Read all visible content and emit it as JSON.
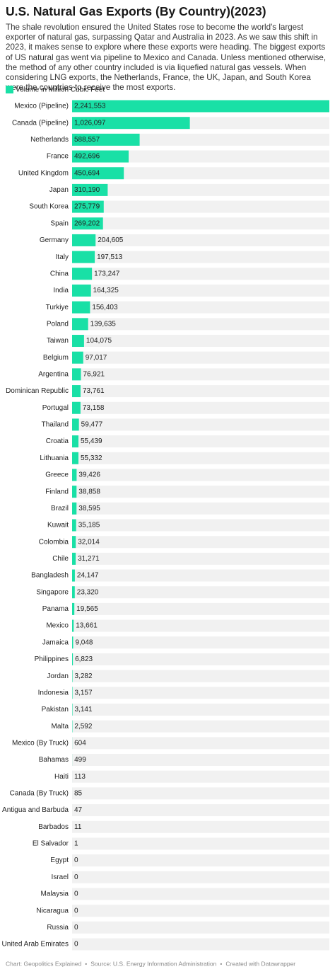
{
  "chart_data": {
    "type": "bar",
    "orientation": "horizontal",
    "title": "U.S. Natural Gas Exports (By Country)(2023)",
    "subtitle": "The shale revolution ensured the United States rose to become the world's largest exporter of natural gas, surpassing Qatar and Australia in 2023. As we saw this shift in 2023, it makes sense to explore where these exports were heading. The biggest exports of US natural gas went via pipeline to Mexico and Canada. Unless mentioned otherwise, the method of any other country included is via liquefied natural gas vessels. When considering LNG exports, the Netherlands, France, the UK, Japan, and South Korea were the countries to receive the most exports.",
    "categories": [
      "Mexico (Pipeline)",
      "Canada (Pipeline)",
      "Netherlands",
      "France",
      "United Kingdom",
      "Japan",
      "South Korea",
      "Spain",
      "Germany",
      "Italy",
      "China",
      "India",
      "Turkiye",
      "Poland",
      "Taiwan",
      "Belgium",
      "Argentina",
      "Dominican Republic",
      "Portugal",
      "Thailand",
      "Croatia",
      "Lithuania",
      "Greece",
      "Finland",
      "Brazil",
      "Kuwait",
      "Colombia",
      "Chile",
      "Bangladesh",
      "Singapore",
      "Panama",
      "Mexico",
      "Jamaica",
      "Philippines",
      "Jordan",
      "Indonesia",
      "Pakistan",
      "Malta",
      "Mexico (By Truck)",
      "Bahamas",
      "Haiti",
      "Canada (By Truck)",
      "Antigua and Barbuda",
      "Barbados",
      "El Salvador",
      "Egypt",
      "Israel",
      "Malaysia",
      "Nicaragua",
      "Russia",
      "United Arab Emirates"
    ],
    "series": [
      {
        "name": "Volume in Million Cubic Feet",
        "color": "#19e0a6",
        "values": [
          2241553,
          1026097,
          588557,
          492696,
          450694,
          310190,
          275779,
          269202,
          204605,
          197513,
          173247,
          164325,
          156403,
          139635,
          104075,
          97017,
          76921,
          73761,
          73158,
          59477,
          55439,
          55332,
          39426,
          38858,
          38595,
          35185,
          32014,
          31271,
          24147,
          23320,
          19565,
          13661,
          9048,
          6823,
          3282,
          3157,
          3141,
          2592,
          604,
          499,
          113,
          85,
          47,
          11,
          1,
          0,
          0,
          0,
          0,
          0,
          0
        ],
        "value_labels": [
          "2,241,553",
          "1,026,097",
          "588,557",
          "492,696",
          "450,694",
          "310,190",
          "275,779",
          "269,202",
          "204,605",
          "197,513",
          "173,247",
          "164,325",
          "156,403",
          "139,635",
          "104,075",
          "97,017",
          "76,921",
          "73,761",
          "73,158",
          "59,477",
          "55,439",
          "55,332",
          "39,426",
          "38,858",
          "38,595",
          "35,185",
          "32,014",
          "31,271",
          "24,147",
          "23,320",
          "19,565",
          "13,661",
          "9,048",
          "6,823",
          "3,282",
          "3,157",
          "3,141",
          "2,592",
          "604",
          "499",
          "113",
          "85",
          "47",
          "11",
          "1",
          "0",
          "0",
          "0",
          "0",
          "0",
          "0"
        ]
      }
    ],
    "xlim": [
      0,
      2241553
    ],
    "background_color": "#f1f1f1",
    "footer": [
      "Chart: Geopolitics Explained",
      "Source: U.S. Energy Information Administration",
      "Created with Datawrapper"
    ]
  }
}
